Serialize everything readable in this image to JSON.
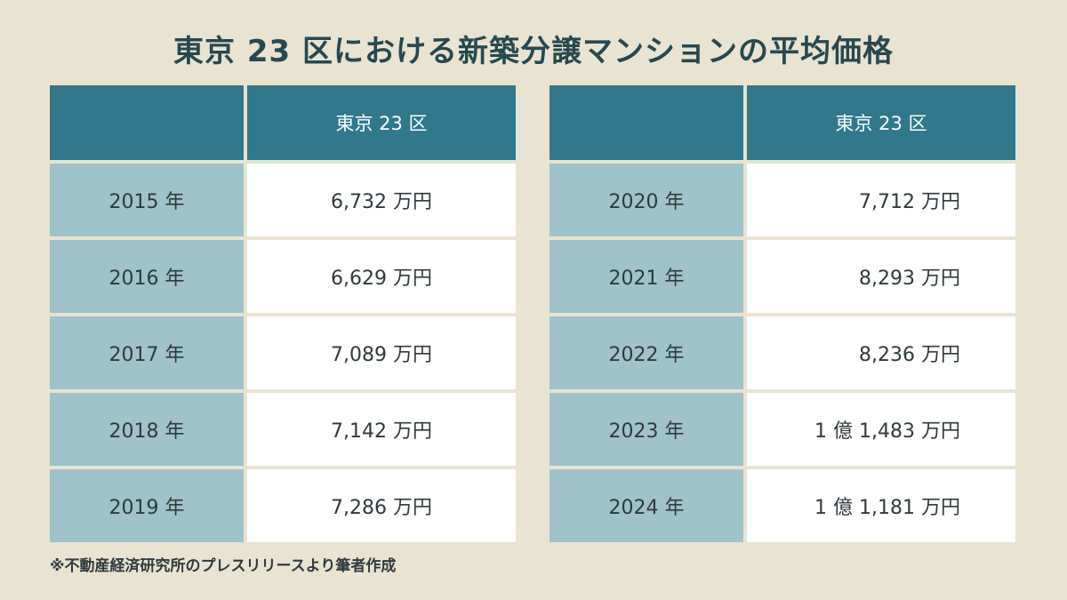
{
  "title": "東京 23 区における新築分譲マンションの平均価格",
  "note": "※不動産経済研究所のプレスリリースより筆者作成",
  "chart_data": {
    "type": "table",
    "title": "東京 23 区における新築分譲マンションの平均価格",
    "columns": [
      "",
      "東京 23 区"
    ],
    "tables": [
      {
        "header": [
          "",
          "東京 23 区"
        ],
        "rows": [
          {
            "year": "2015 年",
            "value": "6,732 万円"
          },
          {
            "year": "2016 年",
            "value": "6,629 万円"
          },
          {
            "year": "2017 年",
            "value": "7,089 万円"
          },
          {
            "year": "2018 年",
            "value": "7,142 万円"
          },
          {
            "year": "2019 年",
            "value": "7,286 万円"
          }
        ]
      },
      {
        "header": [
          "",
          "東京 23 区"
        ],
        "rows": [
          {
            "year": "2020 年",
            "value": "7,712 万円"
          },
          {
            "year": "2021 年",
            "value": "8,293 万円"
          },
          {
            "year": "2022 年",
            "value": "8,236 万円"
          },
          {
            "year": "2023 年",
            "value": "1 億 1,483 万円"
          },
          {
            "year": "2024 年",
            "value": "1 億 1,181 万円"
          }
        ]
      }
    ],
    "colors": {
      "background": "#e9e3d2",
      "header": "#30788a",
      "year_cell": "#9fc2cb",
      "value_cell": "#ffffff"
    }
  }
}
